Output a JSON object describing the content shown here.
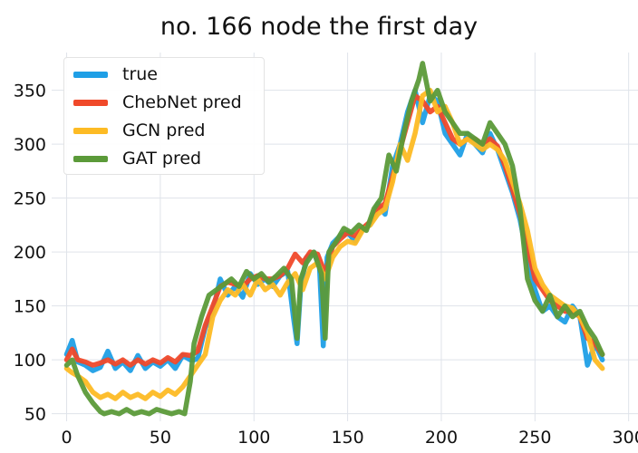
{
  "chart_data": {
    "type": "line",
    "title": "no. 166 node the first day",
    "xlabel": "",
    "ylabel": "",
    "xlim": [
      -8,
      305
    ],
    "ylim": [
      43,
      385
    ],
    "xticks": [
      0,
      50,
      100,
      150,
      200,
      250,
      300
    ],
    "yticks": [
      50,
      100,
      150,
      200,
      250,
      300,
      350
    ],
    "grid": true,
    "legend_position": "top-left",
    "series": [
      {
        "name": "true",
        "color": "#1f9fe6",
        "x": [
          0,
          3,
          6,
          10,
          14,
          18,
          22,
          26,
          30,
          34,
          38,
          42,
          46,
          50,
          54,
          58,
          62,
          66,
          68,
          70,
          74,
          78,
          82,
          86,
          90,
          94,
          98,
          102,
          106,
          110,
          114,
          118,
          121,
          123,
          125,
          128,
          132,
          135,
          137,
          139,
          142,
          146,
          150,
          154,
          158,
          162,
          166,
          170,
          174,
          178,
          182,
          186,
          190,
          194,
          198,
          202,
          206,
          210,
          214,
          218,
          222,
          226,
          230,
          234,
          238,
          242,
          246,
          250,
          254,
          258,
          262,
          266,
          270,
          274,
          278,
          282,
          286
        ],
        "y": [
          105,
          118,
          98,
          95,
          90,
          93,
          108,
          92,
          98,
          90,
          104,
          92,
          98,
          94,
          100,
          92,
          104,
          100,
          100,
          101,
          130,
          145,
          175,
          160,
          168,
          158,
          180,
          170,
          175,
          168,
          178,
          182,
          140,
          115,
          168,
          195,
          200,
          185,
          113,
          195,
          208,
          215,
          218,
          210,
          222,
          225,
          245,
          235,
          280,
          300,
          330,
          350,
          320,
          345,
          340,
          310,
          300,
          290,
          310,
          300,
          292,
          310,
          295,
          275,
          255,
          230,
          195,
          165,
          145,
          150,
          140,
          135,
          150,
          140,
          95,
          115,
          100
        ]
      },
      {
        "name": "ChebNet pred",
        "color": "#f0492a",
        "x": [
          0,
          3,
          6,
          10,
          14,
          18,
          22,
          26,
          30,
          34,
          38,
          42,
          46,
          50,
          54,
          58,
          62,
          66,
          70,
          74,
          78,
          82,
          86,
          90,
          94,
          98,
          102,
          106,
          110,
          114,
          118,
          122,
          126,
          130,
          134,
          138,
          142,
          146,
          150,
          154,
          158,
          162,
          166,
          170,
          174,
          178,
          182,
          186,
          190,
          194,
          198,
          202,
          206,
          210,
          214,
          218,
          222,
          226,
          230,
          234,
          238,
          242,
          246,
          250,
          254,
          258,
          262,
          266,
          270,
          274,
          278,
          282,
          286
        ],
        "y": [
          100,
          110,
          100,
          98,
          95,
          97,
          100,
          96,
          100,
          95,
          100,
          96,
          100,
          97,
          102,
          98,
          105,
          104,
          108,
          132,
          150,
          168,
          172,
          170,
          168,
          175,
          178,
          175,
          175,
          178,
          185,
          198,
          190,
          200,
          198,
          180,
          205,
          212,
          218,
          215,
          222,
          228,
          240,
          245,
          270,
          295,
          320,
          345,
          340,
          330,
          335,
          320,
          305,
          300,
          305,
          305,
          300,
          305,
          298,
          280,
          258,
          235,
          205,
          175,
          165,
          155,
          150,
          145,
          145,
          140,
          120,
          115,
          105
        ]
      },
      {
        "name": "GCN pred",
        "color": "#fdbb24",
        "x": [
          0,
          3,
          6,
          10,
          14,
          18,
          22,
          26,
          30,
          34,
          38,
          42,
          46,
          50,
          54,
          58,
          62,
          66,
          70,
          74,
          78,
          82,
          86,
          90,
          94,
          98,
          102,
          106,
          110,
          114,
          118,
          122,
          126,
          130,
          134,
          138,
          142,
          146,
          150,
          154,
          158,
          162,
          166,
          170,
          174,
          178,
          182,
          186,
          190,
          194,
          198,
          202,
          206,
          210,
          214,
          218,
          222,
          226,
          230,
          234,
          238,
          242,
          246,
          250,
          254,
          258,
          262,
          266,
          270,
          274,
          278,
          282,
          286
        ],
        "y": [
          92,
          88,
          85,
          80,
          70,
          65,
          68,
          64,
          70,
          65,
          68,
          64,
          70,
          66,
          72,
          68,
          75,
          85,
          95,
          105,
          140,
          155,
          165,
          160,
          170,
          160,
          175,
          165,
          170,
          160,
          172,
          180,
          165,
          185,
          190,
          175,
          195,
          205,
          210,
          208,
          220,
          225,
          235,
          240,
          265,
          300,
          285,
          310,
          345,
          350,
          330,
          335,
          320,
          300,
          305,
          300,
          295,
          300,
          295,
          285,
          265,
          245,
          220,
          185,
          170,
          160,
          155,
          150,
          148,
          140,
          125,
          100,
          92
        ]
      },
      {
        "name": "GAT pred",
        "color": "#5b9a39",
        "x": [
          0,
          3,
          6,
          10,
          14,
          18,
          20,
          24,
          28,
          32,
          36,
          40,
          44,
          48,
          52,
          56,
          60,
          63,
          66,
          68,
          72,
          76,
          80,
          84,
          88,
          92,
          96,
          100,
          104,
          108,
          112,
          116,
          120,
          123,
          125,
          128,
          132,
          136,
          138,
          140,
          144,
          148,
          152,
          156,
          160,
          164,
          168,
          172,
          176,
          180,
          184,
          188,
          190,
          194,
          198,
          202,
          206,
          210,
          214,
          218,
          222,
          226,
          230,
          234,
          238,
          242,
          246,
          250,
          254,
          258,
          262,
          266,
          270,
          274,
          278,
          282,
          286
        ],
        "y": [
          95,
          100,
          85,
          70,
          60,
          52,
          50,
          52,
          50,
          54,
          50,
          52,
          50,
          54,
          52,
          50,
          52,
          50,
          80,
          115,
          140,
          160,
          165,
          170,
          175,
          168,
          182,
          175,
          180,
          172,
          178,
          185,
          175,
          120,
          175,
          190,
          200,
          180,
          120,
          200,
          210,
          222,
          218,
          225,
          220,
          240,
          250,
          290,
          275,
          310,
          340,
          360,
          375,
          340,
          350,
          330,
          320,
          310,
          310,
          305,
          300,
          320,
          310,
          300,
          280,
          240,
          175,
          155,
          145,
          160,
          140,
          150,
          140,
          145,
          130,
          120,
          105
        ]
      }
    ]
  }
}
